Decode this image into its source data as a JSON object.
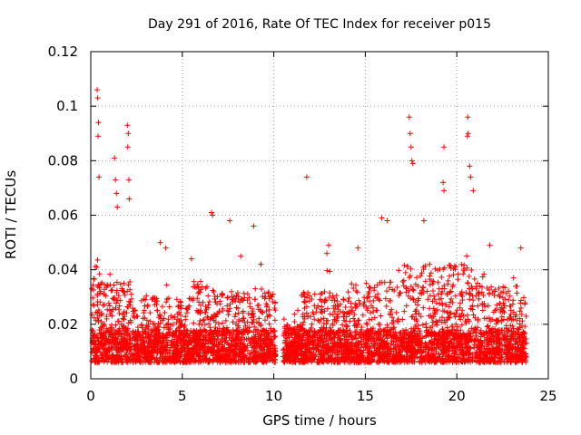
{
  "chart_data": {
    "type": "scatter",
    "title": "Day 291 of 2016, Rate Of TEC Index for receiver p015",
    "xlabel": "GPS time / hours",
    "ylabel": "ROTI / TECUs",
    "xlim": [
      0,
      25
    ],
    "ylim": [
      0,
      0.12
    ],
    "xticks": [
      0,
      5,
      10,
      15,
      20,
      25
    ],
    "xtick_labels": [
      "0",
      "5",
      "10",
      "15",
      "20",
      "25"
    ],
    "yticks": [
      0,
      0.02,
      0.04,
      0.06,
      0.08,
      0.1,
      0.12
    ],
    "ytick_labels": [
      "0",
      "0.02",
      "0.04",
      "0.06",
      "0.08",
      "0.1",
      "0.12"
    ],
    "grid": true,
    "marker": "+",
    "marker_color": "#ff0000",
    "data_gap_hours": [
      10.1,
      10.5
    ],
    "series": [
      {
        "name": "ROTI",
        "points": [
          [
            0.35,
            0.106
          ],
          [
            0.38,
            0.103
          ],
          [
            0.42,
            0.094
          ],
          [
            0.4,
            0.089
          ],
          [
            0.45,
            0.074
          ],
          [
            1.3,
            0.081
          ],
          [
            1.35,
            0.073
          ],
          [
            1.4,
            0.068
          ],
          [
            1.45,
            0.063
          ],
          [
            2.0,
            0.093
          ],
          [
            2.05,
            0.09
          ],
          [
            2.02,
            0.085
          ],
          [
            2.08,
            0.073
          ],
          [
            2.1,
            0.066
          ],
          [
            6.6,
            0.061
          ],
          [
            6.65,
            0.06
          ],
          [
            7.6,
            0.058
          ],
          [
            8.9,
            0.056
          ],
          [
            11.8,
            0.074
          ],
          [
            13.0,
            0.049
          ],
          [
            12.9,
            0.046
          ],
          [
            17.4,
            0.096
          ],
          [
            17.45,
            0.09
          ],
          [
            17.5,
            0.085
          ],
          [
            17.55,
            0.08
          ],
          [
            17.6,
            0.079
          ],
          [
            19.3,
            0.085
          ],
          [
            19.25,
            0.072
          ],
          [
            19.3,
            0.069
          ],
          [
            20.6,
            0.096
          ],
          [
            20.62,
            0.09
          ],
          [
            20.58,
            0.089
          ],
          [
            20.7,
            0.078
          ],
          [
            20.75,
            0.074
          ],
          [
            20.9,
            0.069
          ],
          [
            3.8,
            0.05
          ],
          [
            4.1,
            0.048
          ],
          [
            5.5,
            0.044
          ],
          [
            8.2,
            0.045
          ],
          [
            9.3,
            0.042
          ],
          [
            14.6,
            0.048
          ],
          [
            15.9,
            0.059
          ],
          [
            16.2,
            0.058
          ],
          [
            18.2,
            0.058
          ],
          [
            21.8,
            0.049
          ],
          [
            23.5,
            0.048
          ]
        ]
      }
    ]
  }
}
